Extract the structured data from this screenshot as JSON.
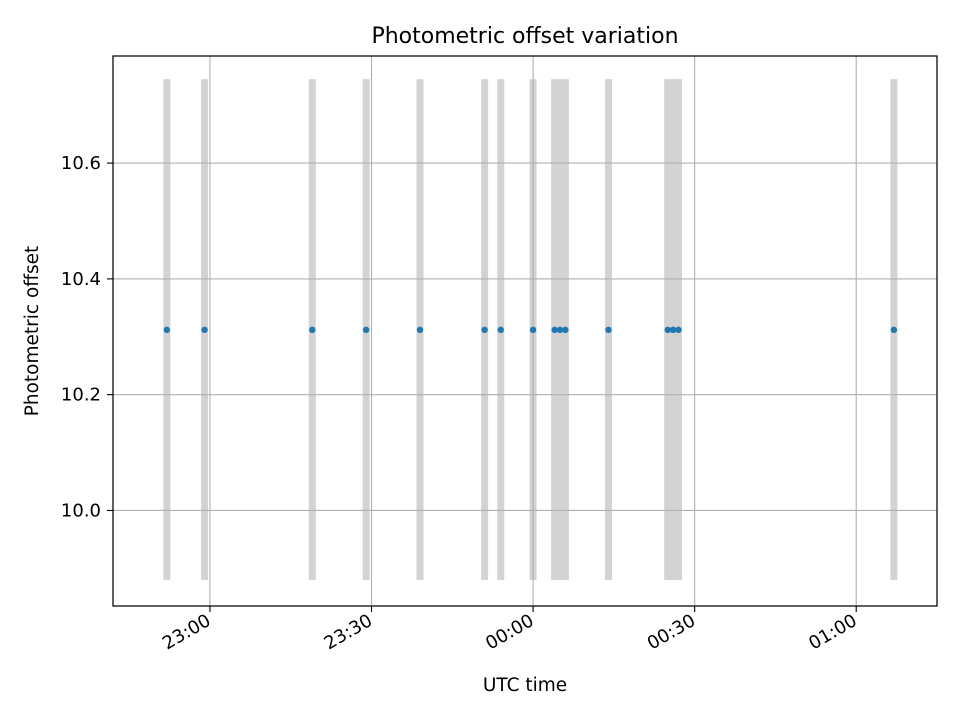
{
  "chart_data": {
    "type": "scatter",
    "title": "Photometric offset variation",
    "xlabel": "UTC time",
    "ylabel": "Photometric offset",
    "x_unit": "UTC time (HH:MM)",
    "xlim": [
      "22:42",
      "01:15"
    ],
    "ylim": [
      9.835,
      10.785
    ],
    "x_ticks": [
      "23:00",
      "23:30",
      "00:00",
      "00:30",
      "01:00"
    ],
    "y_ticks": [
      10.0,
      10.2,
      10.4,
      10.6
    ],
    "y_tick_labels": [
      "10.0",
      "10.2",
      "10.4",
      "10.6"
    ],
    "grid": true,
    "x_tick_rotation_deg": 30,
    "points": [
      {
        "x": "22:52",
        "y": 10.312
      },
      {
        "x": "22:59",
        "y": 10.312
      },
      {
        "x": "23:19",
        "y": 10.312
      },
      {
        "x": "23:29",
        "y": 10.312
      },
      {
        "x": "23:39",
        "y": 10.312
      },
      {
        "x": "23:51",
        "y": 10.312
      },
      {
        "x": "23:54",
        "y": 10.312
      },
      {
        "x": "00:00",
        "y": 10.312
      },
      {
        "x": "00:04",
        "y": 10.312
      },
      {
        "x": "00:05",
        "y": 10.312
      },
      {
        "x": "00:06",
        "y": 10.312
      },
      {
        "x": "00:14",
        "y": 10.312
      },
      {
        "x": "00:25",
        "y": 10.312
      },
      {
        "x": "00:26",
        "y": 10.312
      },
      {
        "x": "00:26",
        "y": 10.312
      },
      {
        "x": "00:27",
        "y": 10.312
      },
      {
        "x": "01:07",
        "y": 10.312
      }
    ],
    "band_range": [
      9.88,
      10.745
    ],
    "colors": {
      "points": "#1f77b4",
      "bands": "#d3d3d3",
      "grid": "#b0b0b0",
      "axes": "#000000"
    }
  }
}
